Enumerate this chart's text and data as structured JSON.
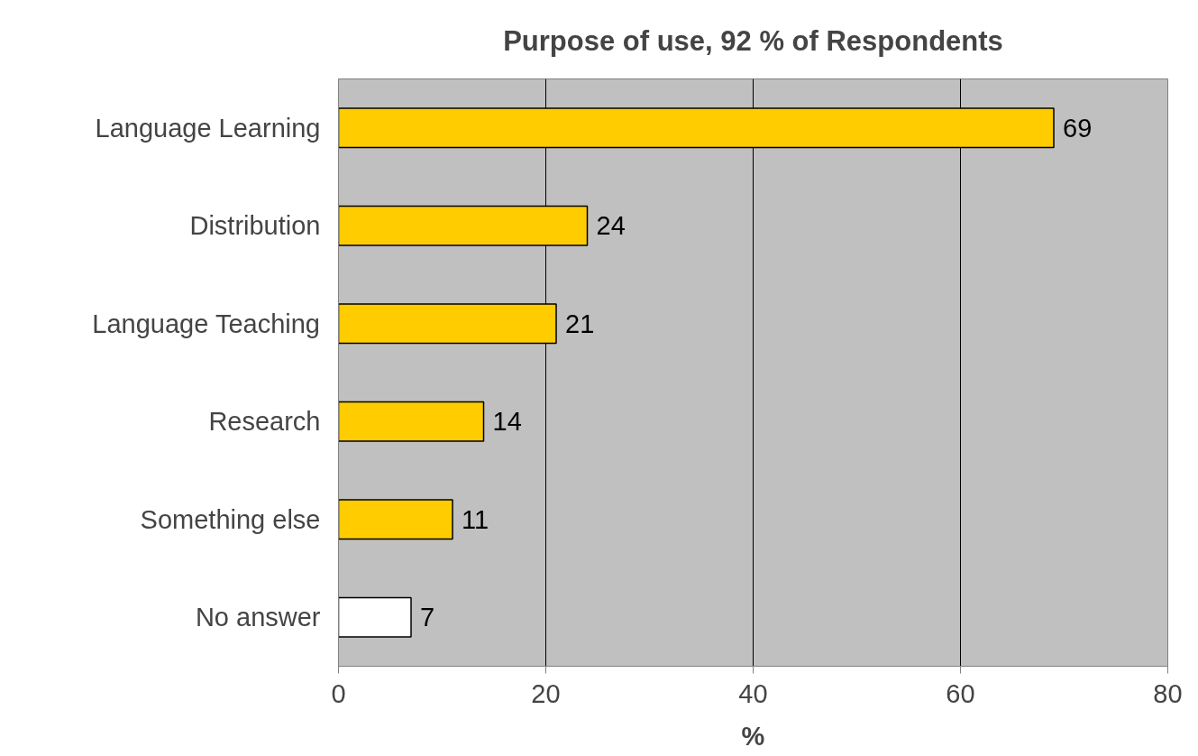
{
  "chart_data": {
    "type": "bar",
    "orientation": "horizontal",
    "title": "Purpose of use, 92 % of Respondents",
    "xlabel": "%",
    "categories": [
      "Language Learning",
      "Distribution",
      "Language Teaching",
      "Research",
      "Something else",
      "No answer"
    ],
    "values": [
      69,
      24,
      21,
      14,
      11,
      7
    ],
    "colors": [
      "#ffcc00",
      "#ffcc00",
      "#ffcc00",
      "#ffcc00",
      "#ffcc00",
      "#ffffff"
    ],
    "xlim": [
      0,
      80
    ],
    "xticks": [
      0,
      20,
      40,
      60,
      80
    ],
    "grid": "x",
    "data_labels": true
  }
}
